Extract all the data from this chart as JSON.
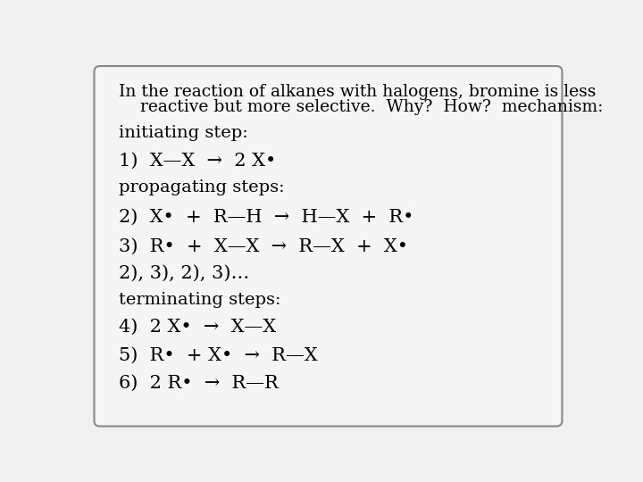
{
  "background_color": "#f0f0f0",
  "box_color": "#f5f5f5",
  "box_edge_color": "#888888",
  "title_line1": "In the reaction of alkanes with halogens, bromine is less",
  "title_line2": "    reactive but more selective.  Why?  How?  mechanism:",
  "section1_header": "initiating step:",
  "step1": "1)  X—X  →  2 X•",
  "section2_header": "propagating steps:",
  "step2": "2)  X•  +  R—H  →  H—X  +  R•",
  "step3": "3)  R•  +  X—X  →  R—X  +  X•",
  "step_repeat": "2), 3), 2), 3)…",
  "section3_header": "terminating steps:",
  "step4": "4)  2 X•  →  X—X",
  "step5": "5)  R•  + X•  →  R—X",
  "step6": "6)  2 R•  →  R—R",
  "font_family": "DejaVu Serif",
  "text_color": "#000000",
  "header_fontsize": 14,
  "step_fontsize": 15,
  "title_fontsize": 13.5,
  "fig_width": 7.2,
  "fig_height": 5.4,
  "dpi": 100
}
